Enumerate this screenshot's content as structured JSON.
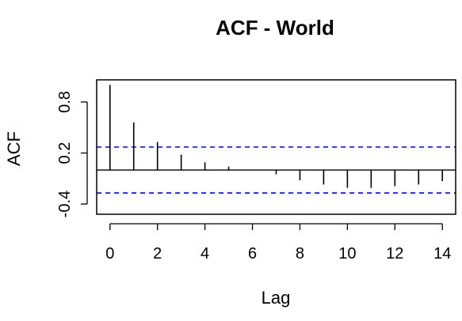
{
  "chart_data": {
    "type": "bar",
    "title": "ACF - World",
    "xlabel": "Lag",
    "ylabel": "ACF",
    "x": [
      0,
      1,
      2,
      3,
      4,
      5,
      6,
      7,
      8,
      9,
      10,
      11,
      12,
      13,
      14
    ],
    "values": [
      1.0,
      0.56,
      0.33,
      0.18,
      0.09,
      0.04,
      0.0,
      -0.05,
      -0.12,
      -0.17,
      -0.21,
      -0.21,
      -0.19,
      -0.17,
      -0.13
    ],
    "xlim": [
      -0.56,
      14.56
    ],
    "ylim": [
      -0.52,
      1.06
    ],
    "x_ticks": [
      "0",
      "2",
      "4",
      "6",
      "8",
      "10",
      "12",
      "14"
    ],
    "y_ticks": [
      "-0.4",
      "0.2",
      "0.8"
    ],
    "confidence_bound": 0.27,
    "colors": {
      "bars": "#000000",
      "confidence_line": "#0000ff",
      "zero_line": "#000000"
    },
    "grid": false
  }
}
